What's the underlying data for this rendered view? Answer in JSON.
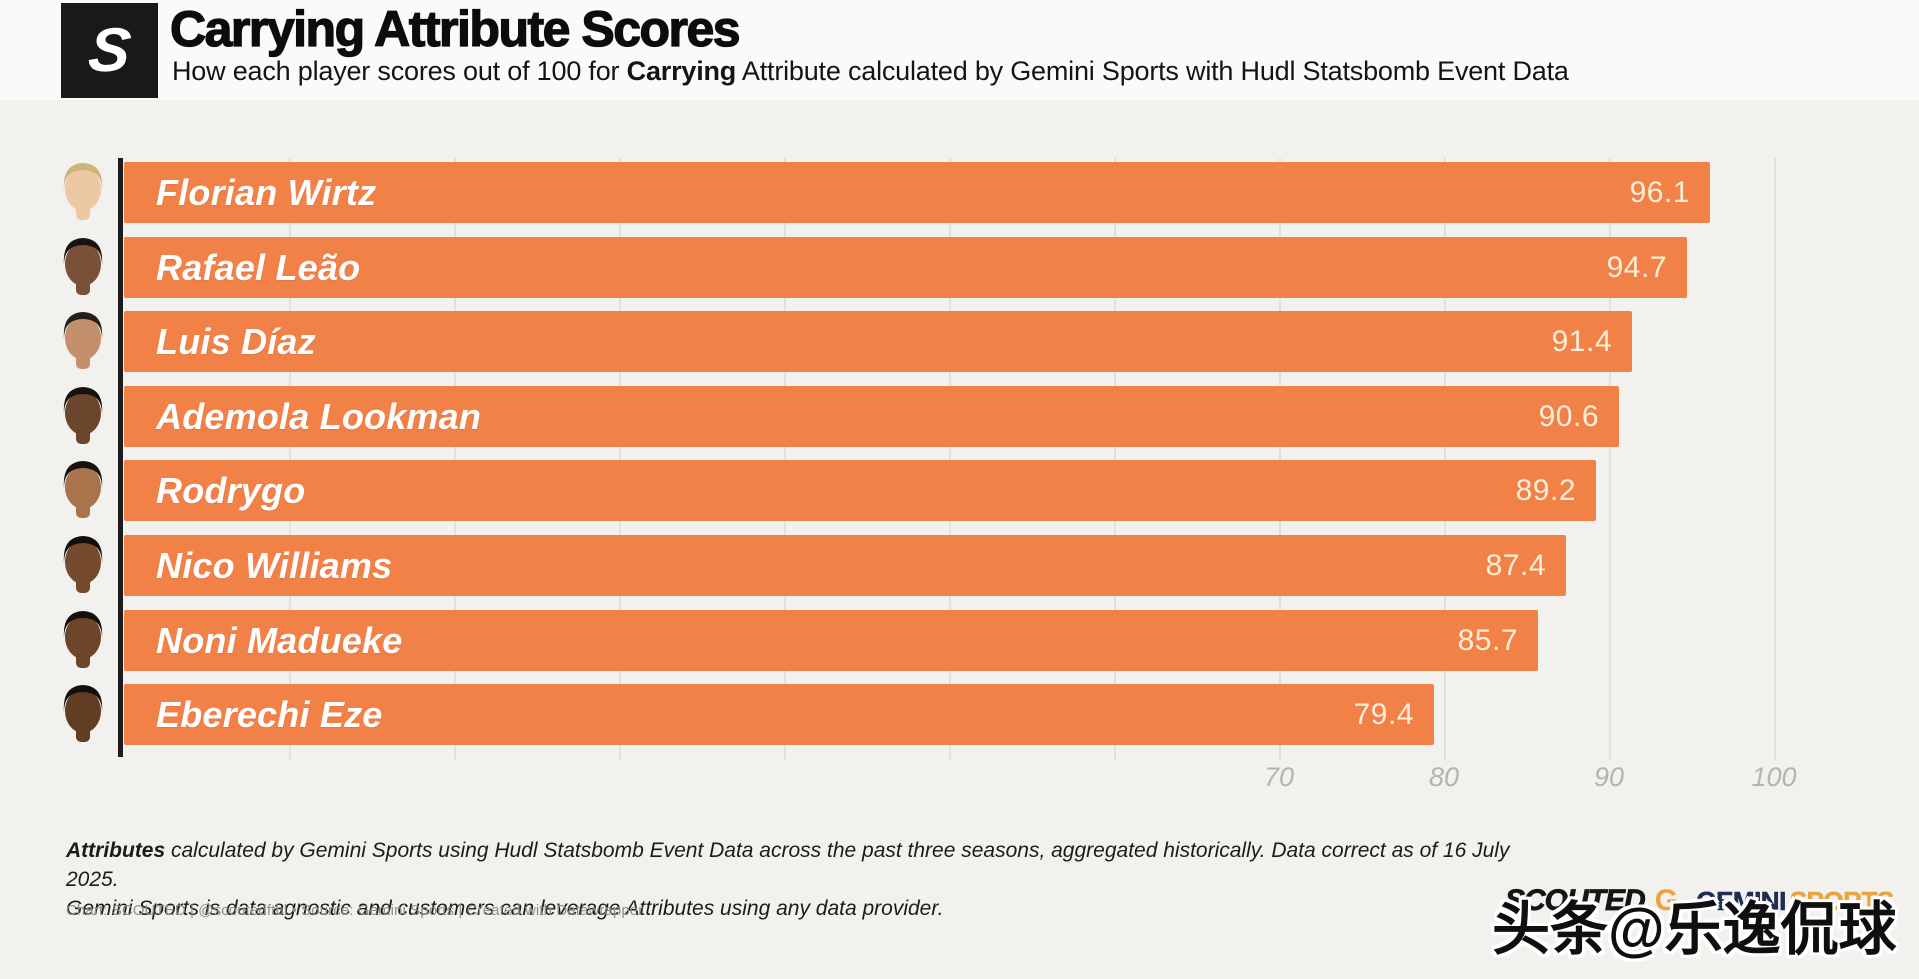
{
  "header": {
    "logo_letter": "S",
    "title": "Carrying Attribute Scores",
    "subtitle_prefix": "How each player scores out of 100 for ",
    "subtitle_bold": "Carrying",
    "subtitle_suffix": " Attribute calculated by Gemini Sports with Hudl Statsbomb Event Data"
  },
  "chart_data": {
    "type": "bar",
    "orientation": "horizontal",
    "title": "Carrying Attribute Scores",
    "subtitle": "How each player scores out of 100 for Carrying Attribute calculated by Gemini Sports with Hudl Statsbomb Event Data",
    "categories": [
      "Florian Wirtz",
      "Rafael Leão",
      "Luis Díaz",
      "Ademola Lookman",
      "Rodrygo",
      "Nico Williams",
      "Noni Madueke",
      "Eberechi Eze"
    ],
    "values": [
      96.1,
      94.7,
      91.4,
      90.6,
      89.2,
      87.4,
      85.7,
      79.4
    ],
    "xlabel": "",
    "ylabel": "",
    "xlim": [
      0,
      100
    ],
    "ticks": [
      70,
      80,
      90,
      100
    ],
    "gridline_step": 10,
    "grid": "vertical-light-gray",
    "legend": "none",
    "bar_color": "#F28148",
    "value_label_color": "#FAEED8",
    "name_label_color": "#FFFFFF"
  },
  "players": [
    {
      "name": "Florian Wirtz",
      "value": "96.1",
      "avatar": {
        "skin": "#ecc9a3",
        "hair": "#cdb478"
      }
    },
    {
      "name": "Rafael Leão",
      "value": "94.7",
      "avatar": {
        "skin": "#7a5138",
        "hair": "#181411"
      }
    },
    {
      "name": "Luis Díaz",
      "value": "91.4",
      "avatar": {
        "skin": "#c3906b",
        "hair": "#23201c"
      }
    },
    {
      "name": "Ademola Lookman",
      "value": "90.6",
      "avatar": {
        "skin": "#6b462c",
        "hair": "#141110"
      }
    },
    {
      "name": "Rodrygo",
      "value": "89.2",
      "avatar": {
        "skin": "#a9744c",
        "hair": "#15120f"
      }
    },
    {
      "name": "Nico Williams",
      "value": "87.4",
      "avatar": {
        "skin": "#74492c",
        "hair": "#100d0b"
      }
    },
    {
      "name": "Noni Madueke",
      "value": "85.7",
      "avatar": {
        "skin": "#6d462a",
        "hair": "#13100d"
      }
    },
    {
      "name": "Eberechi Eze",
      "value": "79.4",
      "avatar": {
        "skin": "#5f3c22",
        "hair": "#120f0c"
      }
    }
  ],
  "footnote": {
    "line1_bold": "Attributes",
    "line1_rest": " calculated by Gemini Sports using Hudl Statsbomb Event Data across the past three seasons, aggregated historically. Data correct as of 16 July 2025.",
    "line2": "Gemini Sports is data agnostic and customers can leverage Attributes using any data provider."
  },
  "credit": "Chart: SCOUTED | @scoutedftbl • Source: Gemini Sports | Created with Datawrapper",
  "branding": {
    "scouted_wordmark": "SCOUTED",
    "gemini_g": "G.",
    "gemini_word": "GEMINI",
    "sports_word": "SPORTS",
    "gemini_navy": "#1e2d50",
    "sports_gold": "#e9a43e"
  },
  "watermark": "头条@乐逸侃球"
}
